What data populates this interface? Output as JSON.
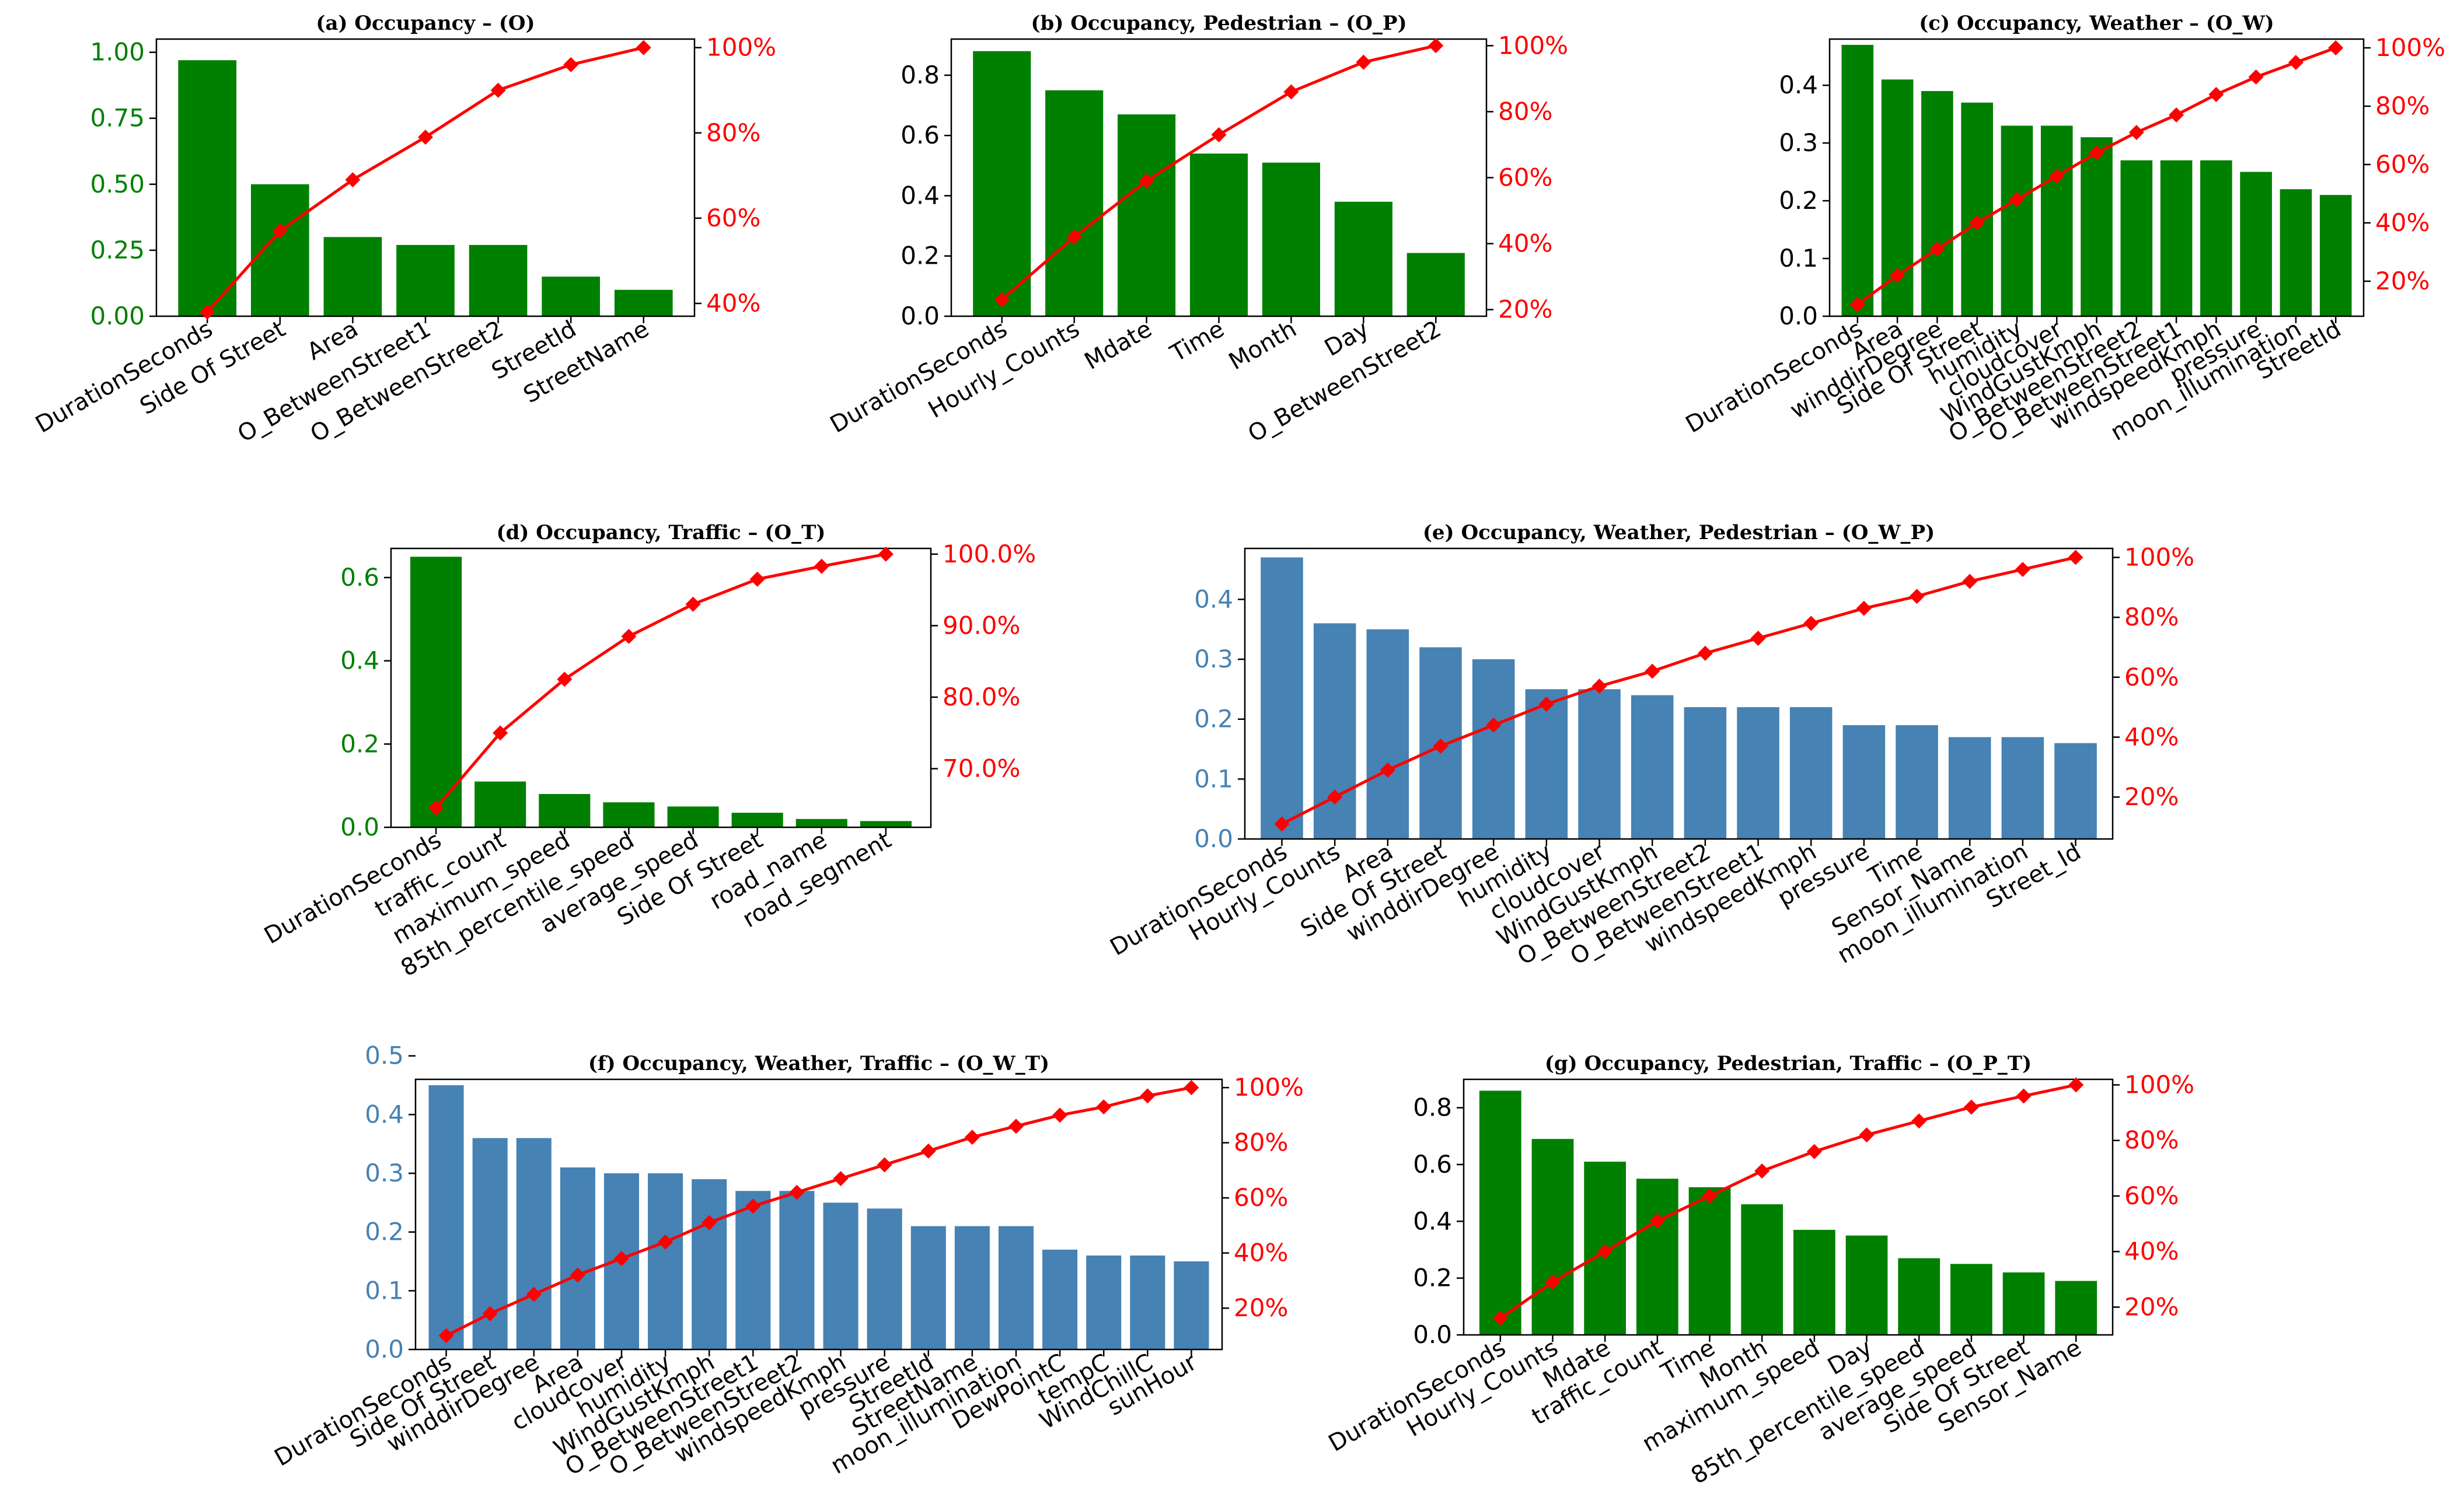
{
  "chart_data": [
    {
      "id": "a",
      "type": "pareto",
      "title": "(a) Occupancy – (O)",
      "bar_color": "#008000",
      "left_axis_color": "#008000",
      "line_color": "#ff0000",
      "categories": [
        "DurationSeconds",
        "Side Of Street",
        "Area",
        "O_BetweenStreet1",
        "O_BetweenStreet2",
        "StreetId",
        "StreetName"
      ],
      "values": [
        0.97,
        0.5,
        0.3,
        0.27,
        0.27,
        0.15,
        0.1
      ],
      "cumulative_percent": [
        38,
        57,
        69,
        79,
        90,
        96,
        100
      ],
      "ylim": [
        0,
        1.05
      ],
      "yticks": [
        "0.00",
        "0.25",
        "0.50",
        "0.75",
        "1.00"
      ],
      "y2lim": [
        37,
        102
      ],
      "y2ticks": [
        "40%",
        "60%",
        "80%",
        "100%"
      ]
    },
    {
      "id": "b",
      "type": "pareto",
      "title": "(b) Occupancy, Pedestrian – (O_P)",
      "bar_color": "#008000",
      "left_axis_color": "#000000",
      "line_color": "#ff0000",
      "categories": [
        "DurationSeconds",
        "Hourly_Counts",
        "Mdate",
        "Time",
        "Month",
        "Day",
        "O_BetweenStreet2"
      ],
      "values": [
        0.88,
        0.75,
        0.67,
        0.54,
        0.51,
        0.38,
        0.21
      ],
      "cumulative_percent": [
        23,
        42,
        59,
        73,
        86,
        95,
        100
      ],
      "ylim": [
        0,
        0.92
      ],
      "yticks": [
        "0.0",
        "0.2",
        "0.4",
        "0.6",
        "0.8"
      ],
      "y2lim": [
        18,
        102
      ],
      "y2ticks": [
        "20%",
        "40%",
        "60%",
        "80%",
        "100%"
      ]
    },
    {
      "id": "c",
      "type": "pareto",
      "title": "(c) Occupancy, Weather – (O_W)",
      "bar_color": "#008000",
      "left_axis_color": "#000000",
      "line_color": "#ff0000",
      "categories": [
        "DurationSeconds",
        "Area",
        "winddirDegree",
        "Side Of Street",
        "humidity",
        "cloudcover",
        "WindGustKmph",
        "O_BetweenStreet2",
        "O_BetweenStreet1",
        "windspeedKmph",
        "pressure",
        "moon_illumination",
        "StreetId"
      ],
      "values": [
        0.47,
        0.41,
        0.39,
        0.37,
        0.33,
        0.33,
        0.31,
        0.27,
        0.27,
        0.27,
        0.25,
        0.22,
        0.21
      ],
      "cumulative_percent": [
        12,
        22,
        31,
        40,
        48,
        56,
        64,
        71,
        77,
        84,
        90,
        95,
        100
      ],
      "ylim": [
        0,
        0.48
      ],
      "yticks": [
        "0.0",
        "0.1",
        "0.2",
        "0.3",
        "0.4"
      ],
      "y2lim": [
        8,
        103
      ],
      "y2ticks": [
        "20%",
        "40%",
        "60%",
        "80%",
        "100%"
      ]
    },
    {
      "id": "d",
      "type": "pareto",
      "title": "(d) Occupancy, Traffic – (O_T)",
      "bar_color": "#008000",
      "left_axis_color": "#008000",
      "line_color": "#ff0000",
      "categories": [
        "DurationSeconds",
        "traffic_count",
        "maximum_speed",
        "85th_percentile_speed",
        "average_speed",
        "Side Of Street",
        "road_name",
        "road_segment"
      ],
      "values": [
        0.65,
        0.11,
        0.08,
        0.06,
        0.05,
        0.035,
        0.02,
        0.015
      ],
      "cumulative_percent": [
        64.5,
        75,
        82.5,
        88.5,
        93,
        96.5,
        98.3,
        100
      ],
      "ylim": [
        0,
        0.67
      ],
      "yticks": [
        "0.0",
        "0.2",
        "0.4",
        "0.6"
      ],
      "y2lim": [
        61.8,
        100.8
      ],
      "y2ticks": [
        "70.0%",
        "80.0%",
        "90.0%",
        "100.0%"
      ]
    },
    {
      "id": "e",
      "type": "pareto",
      "title": "(e) Occupancy, Weather, Pedestrian – (O_W_P)",
      "bar_color": "#4682b4",
      "left_axis_color": "#4682b4",
      "line_color": "#ff0000",
      "categories": [
        "DurationSeconds",
        "Hourly_Counts",
        "Area",
        "Side Of Street",
        "winddirDegree",
        "humidity",
        "cloudcover",
        "WindGustKmph",
        "O_BetweenStreet2",
        "O_BetweenStreet1",
        "windspeedKmph",
        "pressure",
        "Time",
        "Sensor_Name",
        "moon_illumination",
        "Street_Id"
      ],
      "values": [
        0.47,
        0.36,
        0.35,
        0.32,
        0.3,
        0.25,
        0.25,
        0.24,
        0.22,
        0.22,
        0.22,
        0.19,
        0.19,
        0.17,
        0.17,
        0.16
      ],
      "cumulative_percent": [
        11,
        20,
        29,
        37,
        44,
        51,
        57,
        62,
        68,
        73,
        78,
        83,
        87,
        92,
        96,
        100
      ],
      "ylim": [
        0,
        0.485
      ],
      "yticks": [
        "0.0",
        "0.1",
        "0.2",
        "0.3",
        "0.4"
      ],
      "y2lim": [
        6,
        103
      ],
      "y2ticks": [
        "20%",
        "40%",
        "60%",
        "80%",
        "100%"
      ]
    },
    {
      "id": "f",
      "type": "pareto",
      "title": "(f) Occupancy, Weather, Traffic – (O_W_T)",
      "bar_color": "#4682b4",
      "left_axis_color": "#4682b4",
      "line_color": "#ff0000",
      "categories": [
        "DurationSeconds",
        "Side Of Street",
        "winddirDegree",
        "Area",
        "cloudcover",
        "humidity",
        "WindGustKmph",
        "O_BetweenStreet1",
        "O_BetweenStreet2",
        "windspeedKmph",
        "pressure",
        "StreetId",
        "StreetName",
        "moon_illumination",
        "DewPointC",
        "tempC",
        "WindChillC",
        "sunHour"
      ],
      "values": [
        0.45,
        0.36,
        0.36,
        0.31,
        0.3,
        0.3,
        0.29,
        0.27,
        0.27,
        0.25,
        0.24,
        0.21,
        0.21,
        0.21,
        0.17,
        0.16,
        0.16,
        0.15
      ],
      "cumulative_percent": [
        10,
        18,
        25,
        32,
        38,
        44,
        51,
        57,
        62,
        67,
        72,
        77,
        82,
        86,
        90,
        93,
        97,
        100
      ],
      "ylim": [
        0,
        0.46
      ],
      "yticks": [
        "0.0",
        "0.1",
        "0.2",
        "0.3",
        "0.4",
        "0.5"
      ],
      "y2lim": [
        5,
        103
      ],
      "y2ticks": [
        "20%",
        "40%",
        "60%",
        "80%",
        "100%"
      ]
    },
    {
      "id": "g",
      "type": "pareto",
      "title": "(g) Occupancy, Pedestrian, Traffic – (O_P_T)",
      "bar_color": "#008000",
      "left_axis_color": "#000000",
      "line_color": "#ff0000",
      "categories": [
        "DurationSeconds",
        "Hourly_Counts",
        "Mdate",
        "traffic_count",
        "Time",
        "Month",
        "maximum_speed",
        "Day",
        "85th_percentile_speed",
        "average_speed",
        "Side Of Street",
        "Sensor_Name"
      ],
      "values": [
        0.86,
        0.69,
        0.61,
        0.55,
        0.52,
        0.46,
        0.37,
        0.35,
        0.27,
        0.25,
        0.22,
        0.19
      ],
      "cumulative_percent": [
        16,
        29,
        40,
        51,
        60,
        69,
        76,
        82,
        87,
        92,
        96,
        100
      ],
      "ylim": [
        0,
        0.9
      ],
      "yticks": [
        "0.0",
        "0.2",
        "0.4",
        "0.6",
        "0.8"
      ],
      "y2lim": [
        10,
        102
      ],
      "y2ticks": [
        "20%",
        "40%",
        "60%",
        "80%",
        "100%"
      ]
    }
  ]
}
